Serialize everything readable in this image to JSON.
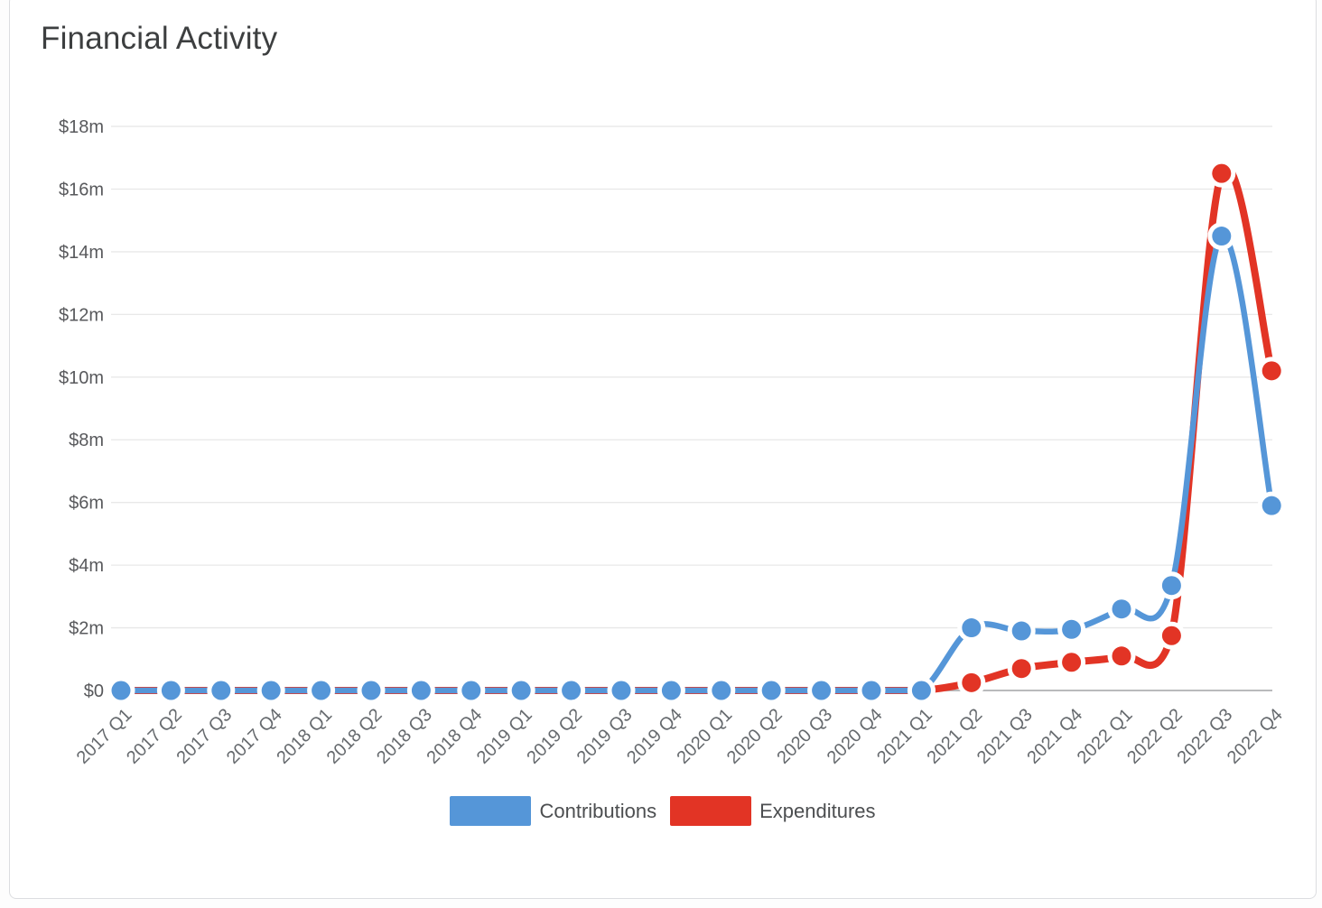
{
  "chart": {
    "title": "Financial Activity"
  },
  "chart_data": {
    "type": "line",
    "title": "Financial Activity",
    "xlabel": "",
    "ylabel": "",
    "y_unit": "millions USD",
    "ylim": [
      0,
      18
    ],
    "grid": "horizontal",
    "legend_position": "bottom",
    "x_label_rotation": -45,
    "marker": "filled-circle-with-white-ring",
    "categories": [
      "2017 Q1",
      "2017 Q2",
      "2017 Q3",
      "2017 Q4",
      "2018 Q1",
      "2018 Q2",
      "2018 Q3",
      "2018 Q4",
      "2019 Q1",
      "2019 Q2",
      "2019 Q3",
      "2019 Q4",
      "2020 Q1",
      "2020 Q2",
      "2020 Q3",
      "2020 Q4",
      "2021 Q1",
      "2021 Q2",
      "2021 Q3",
      "2021 Q4",
      "2022 Q1",
      "2022 Q2",
      "2022 Q3",
      "2022 Q4"
    ],
    "y_ticks": [
      {
        "value": 0,
        "label": "$0"
      },
      {
        "value": 2,
        "label": "$2m"
      },
      {
        "value": 4,
        "label": "$4m"
      },
      {
        "value": 6,
        "label": "$6m"
      },
      {
        "value": 8,
        "label": "$8m"
      },
      {
        "value": 10,
        "label": "$10m"
      },
      {
        "value": 12,
        "label": "$12m"
      },
      {
        "value": 14,
        "label": "$14m"
      },
      {
        "value": 16,
        "label": "$16m"
      },
      {
        "value": 18,
        "label": "$18m"
      }
    ],
    "series": [
      {
        "name": "Contributions",
        "color": "#5596d8",
        "line_width": 6.5,
        "values": [
          0,
          0,
          0,
          0,
          0,
          0,
          0,
          0,
          0,
          0,
          0,
          0,
          0,
          0,
          0,
          0,
          0,
          2.0,
          1.9,
          1.95,
          2.6,
          3.35,
          14.5,
          5.9
        ]
      },
      {
        "name": "Expenditures",
        "color": "#e23425",
        "line_width": 8,
        "values": [
          0,
          0,
          0,
          0,
          0,
          0,
          0,
          0,
          0,
          0,
          0,
          0,
          0,
          0,
          0,
          0,
          0,
          0.25,
          0.7,
          0.9,
          1.1,
          1.75,
          16.5,
          10.2
        ]
      }
    ],
    "colors": {
      "grid_line": "#e8e8e8",
      "zero_axis_line": "#b9babc",
      "axis_label_text": "#58595c",
      "title_text": "#3d3f40",
      "legend_text": "#4c4e50",
      "background": "#ffffff",
      "card_border": "#dcdde0"
    }
  }
}
